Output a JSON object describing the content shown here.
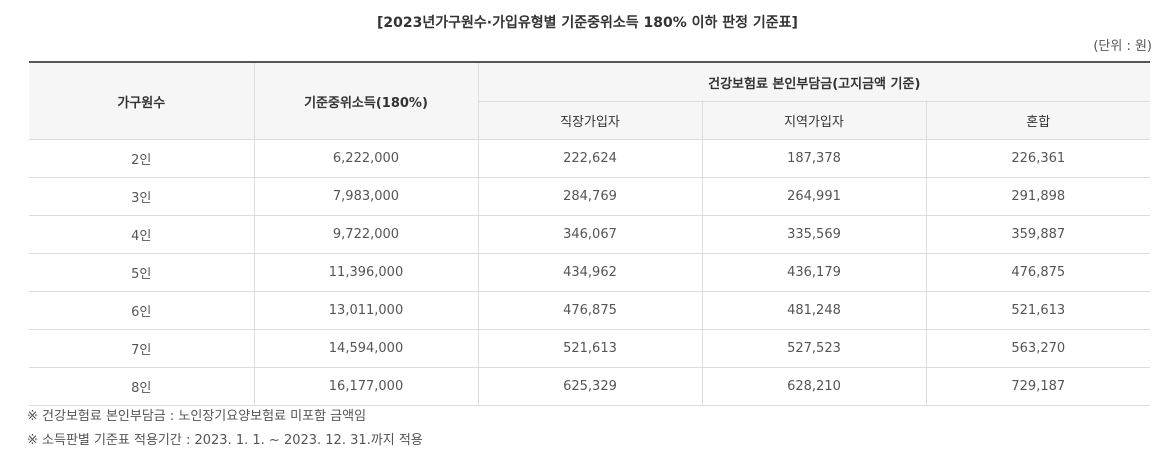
{
  "title": "[2023년가구원수·가입유형별 기준중위소득 180% 이하 판정 기준표]",
  "unit": "(단위 : 원)",
  "table": {
    "headers": {
      "household": "가구원수",
      "median_income": "기준중위소득(180%)",
      "premium_group": "건강보험료 본인부담금(고지금액 기준)",
      "employee": "직장가입자",
      "regional": "지역가입자",
      "mixed": "혼합"
    },
    "rows": [
      [
        "2인",
        "6,222,000",
        "222,624",
        "187,378",
        "226,361"
      ],
      [
        "3인",
        "7,983,000",
        "284,769",
        "264,991",
        "291,898"
      ],
      [
        "4인",
        "9,722,000",
        "346,067",
        "335,569",
        "359,887"
      ],
      [
        "5인",
        "11,396,000",
        "434,962",
        "436,179",
        "476,875"
      ],
      [
        "6인",
        "13,011,000",
        "476,875",
        "481,248",
        "521,613"
      ],
      [
        "7인",
        "14,594,000",
        "521,613",
        "527,523",
        "563,270"
      ],
      [
        "8인",
        "16,177,000",
        "625,329",
        "628,210",
        "729,187"
      ]
    ]
  },
  "notes": [
    "※ 건강보험료 본인부담금 : 노인장기요양보험료 미포함 금액임",
    "※ 소득판별 기준표 적용기간 : 2023. 1. 1. ~ 2023. 12. 31.까지 적용"
  ]
}
